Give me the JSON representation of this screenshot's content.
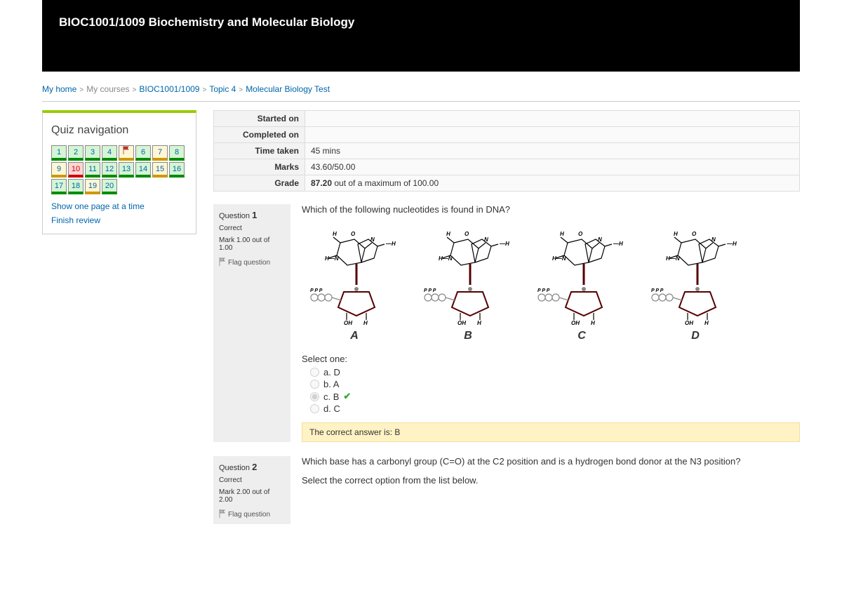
{
  "banner": {
    "title": "BIOC1001/1009 Biochemistry and Molecular Biology"
  },
  "breadcrumb": [
    {
      "label": "My home",
      "link": true
    },
    {
      "label": "My courses",
      "link": false,
      "muted": true
    },
    {
      "label": "BIOC1001/1009",
      "link": true
    },
    {
      "label": "Topic 4",
      "link": true
    },
    {
      "label": "Molecular Biology Test",
      "link": true
    }
  ],
  "nav": {
    "heading": "Quiz navigation",
    "buttons": [
      {
        "n": "1",
        "state": "correct"
      },
      {
        "n": "2",
        "state": "correct"
      },
      {
        "n": "3",
        "state": "correct"
      },
      {
        "n": "4",
        "state": "correct"
      },
      {
        "n": "5",
        "state": "partial",
        "flag": true
      },
      {
        "n": "6",
        "state": "correct"
      },
      {
        "n": "7",
        "state": "partial"
      },
      {
        "n": "8",
        "state": "correct"
      },
      {
        "n": "9",
        "state": "partial"
      },
      {
        "n": "10",
        "state": "incorrect"
      },
      {
        "n": "11",
        "state": "correct"
      },
      {
        "n": "12",
        "state": "correct"
      },
      {
        "n": "13",
        "state": "correct"
      },
      {
        "n": "14",
        "state": "correct"
      },
      {
        "n": "15",
        "state": "partial"
      },
      {
        "n": "16",
        "state": "correct"
      },
      {
        "n": "17",
        "state": "correct"
      },
      {
        "n": "18",
        "state": "correct"
      },
      {
        "n": "19",
        "state": "partial"
      },
      {
        "n": "20",
        "state": "correct"
      }
    ],
    "links": {
      "one_page": "Show one page at a time",
      "finish": "Finish review"
    }
  },
  "summary": {
    "rows": [
      {
        "label": "Started on",
        "value": ""
      },
      {
        "label": "Completed on",
        "value": ""
      },
      {
        "label": "Time taken",
        "value": "45 mins"
      },
      {
        "label": "Marks",
        "value": "43.60/50.00"
      },
      {
        "label": "Grade",
        "value_html": "<b>87.20</b> out of a maximum of 100.00"
      }
    ]
  },
  "questions": [
    {
      "number": "1",
      "state": "Correct",
      "mark": "Mark 1.00 out of 1.00",
      "flag_label": "Flag question",
      "prompt": "Which of the following nucleotides is found in DNA?",
      "molecules": [
        "A",
        "B",
        "C",
        "D"
      ],
      "select_label": "Select one:",
      "options": [
        {
          "key": "a",
          "text": "D",
          "checked": false,
          "correct": false
        },
        {
          "key": "b",
          "text": "A",
          "checked": false,
          "correct": false
        },
        {
          "key": "c",
          "text": "B",
          "checked": true,
          "correct": true
        },
        {
          "key": "d",
          "text": "C",
          "checked": false,
          "correct": false
        }
      ],
      "feedback": "The correct answer is: B"
    },
    {
      "number": "2",
      "state": "Correct",
      "mark": "Mark 2.00 out of 2.00",
      "flag_label": "Flag question",
      "prompt": "Which base has a carbonyl group (C=O) at the C2 position and is a hydrogen bond donor at the N3 position?",
      "sub_prompt": "Select the correct option from the list below."
    }
  ],
  "style": {
    "accent_green": "#008c00",
    "accent_red": "#c00",
    "accent_yellow": "#c90",
    "feedback_bg": "#fff2c4",
    "nav_border_top": "#9c0",
    "link_color": "#0066aa"
  }
}
